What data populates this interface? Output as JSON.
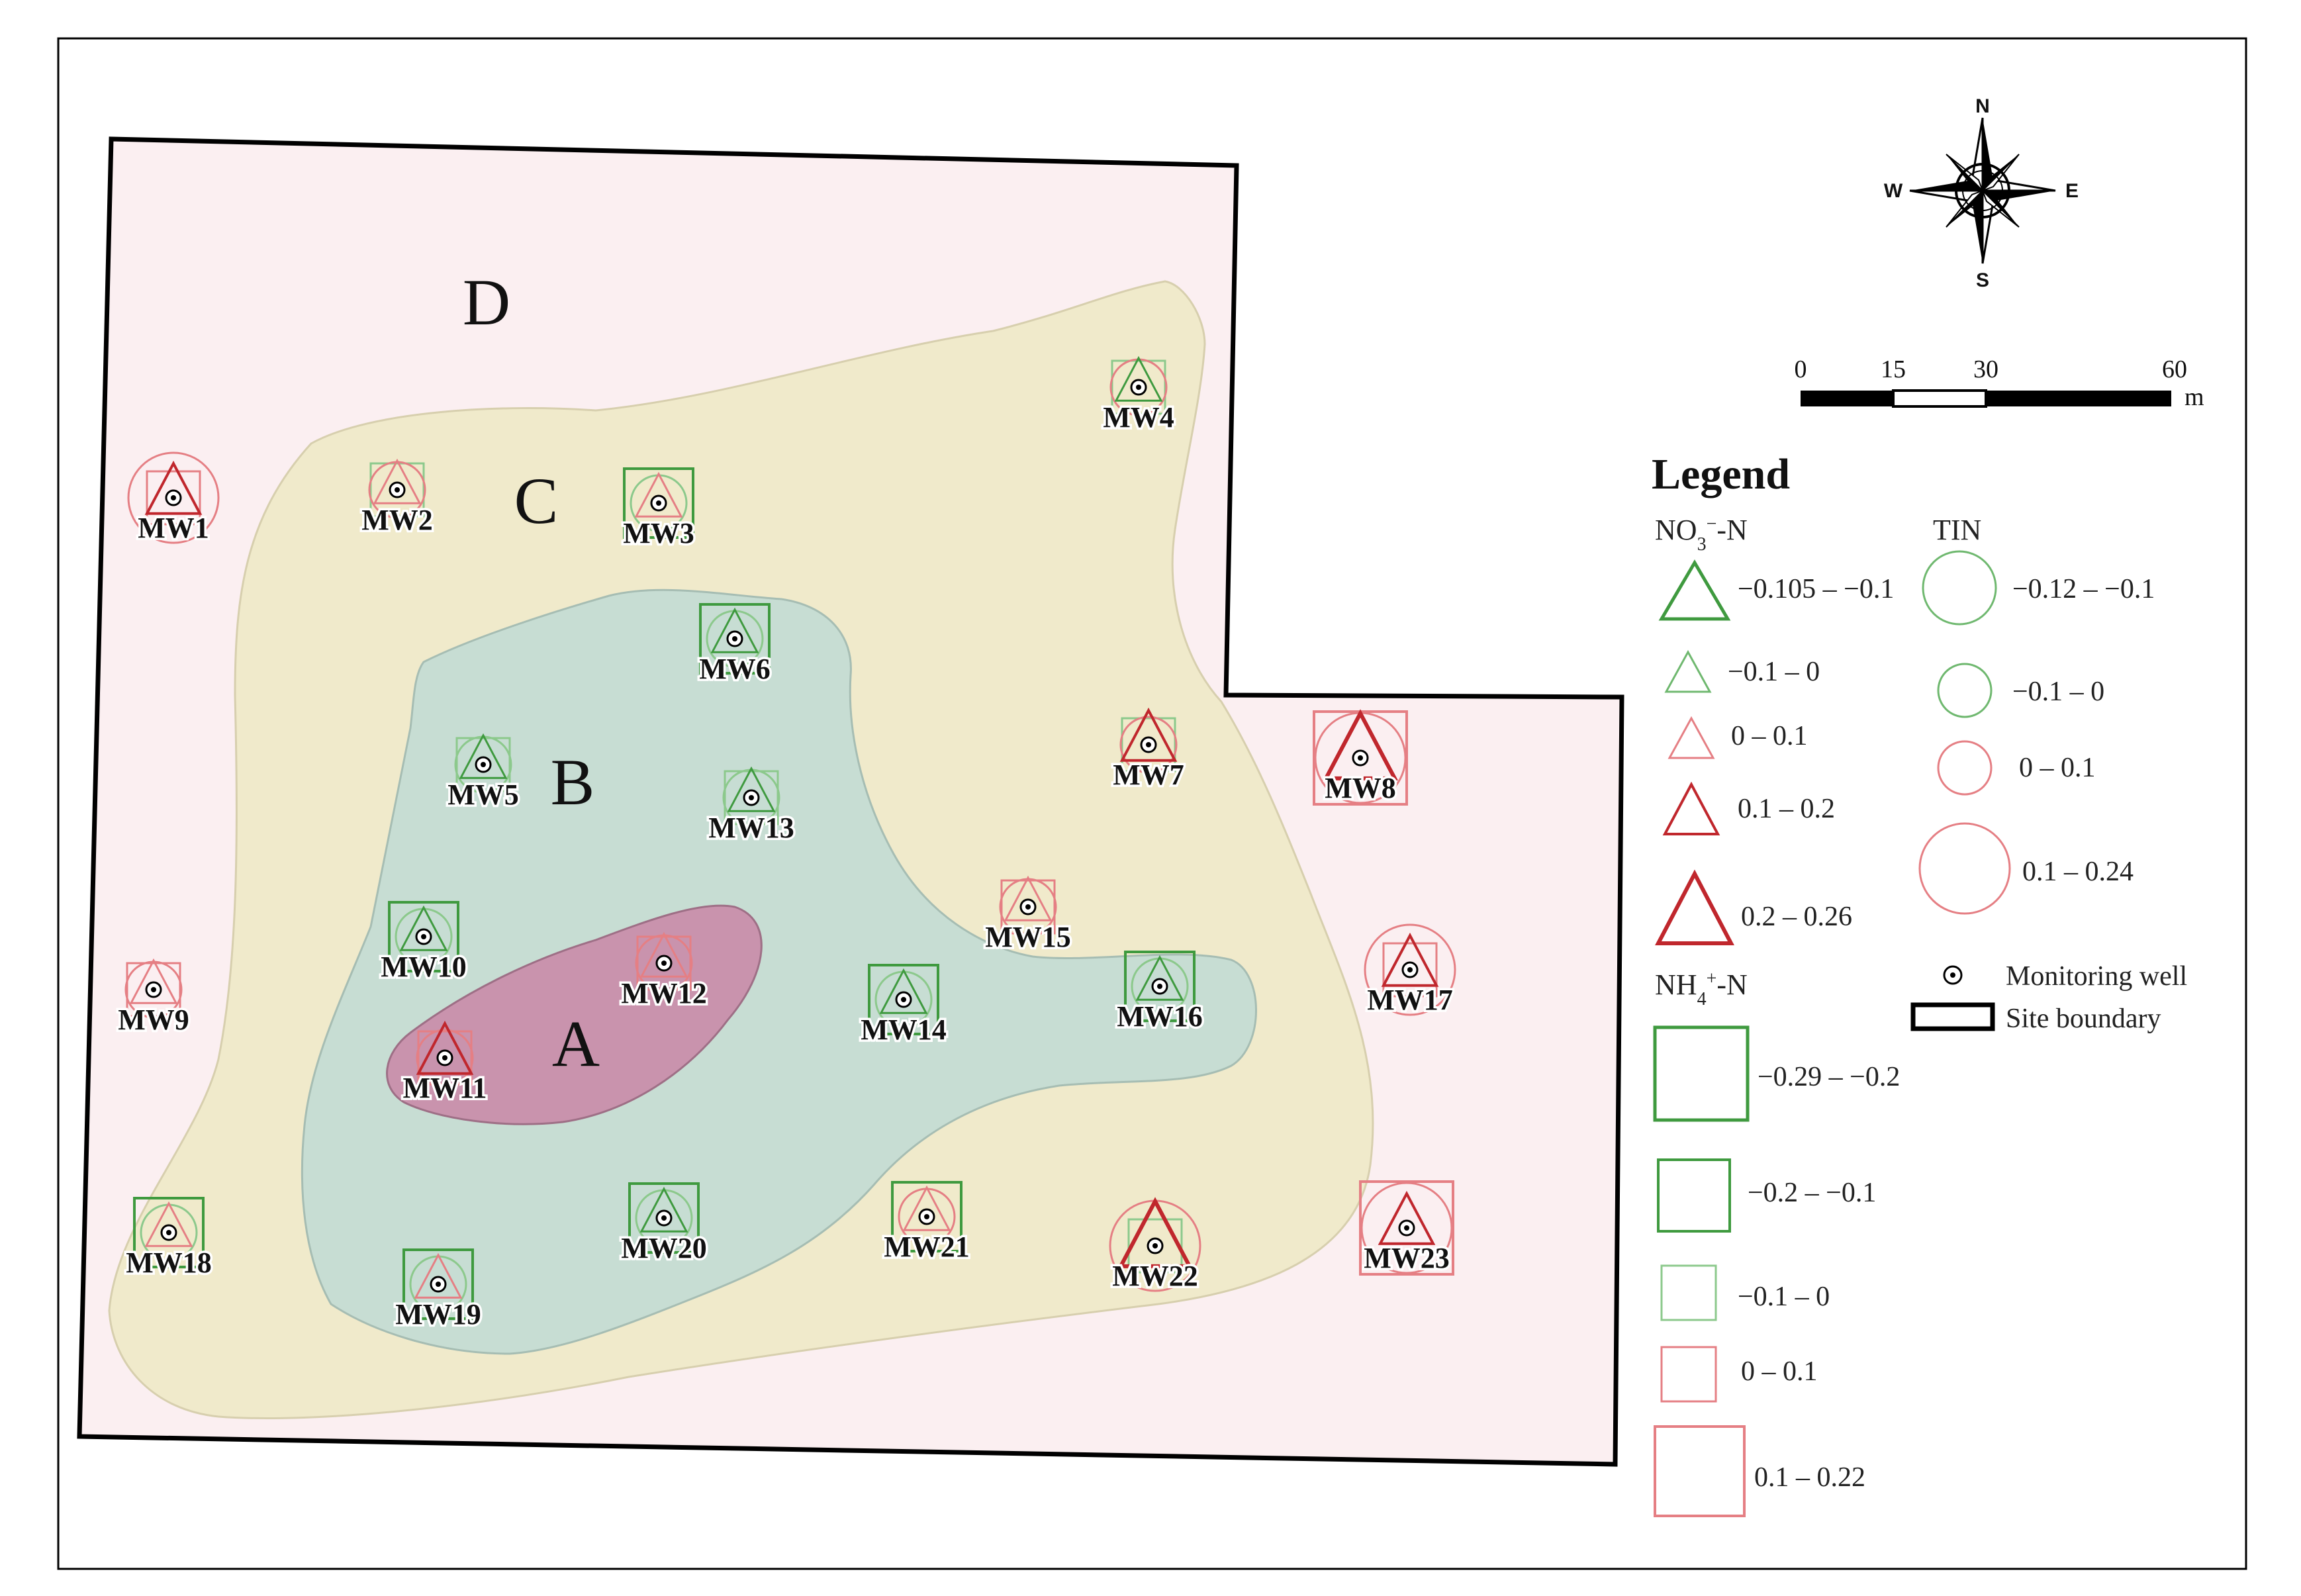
{
  "colors": {
    "zone_a": "#C993AD",
    "zone_b": "#C7DDD3",
    "zone_c": "#F0EACB",
    "zone_d": "#FBEFF1",
    "green": "#3F9A3F",
    "light_green": "#8CC98C",
    "red": "#C0272D",
    "light_red": "#E57F84",
    "boundary": "#000000"
  },
  "zones": [
    {
      "id": "A",
      "label": "A"
    },
    {
      "id": "B",
      "label": "B"
    },
    {
      "id": "C",
      "label": "C"
    },
    {
      "id": "D",
      "label": "D"
    }
  ],
  "compass": {
    "n": "N",
    "s": "S",
    "e": "E",
    "w": "W"
  },
  "scale_bar": {
    "ticks": [
      "0",
      "15",
      "30",
      "60"
    ],
    "unit": "m"
  },
  "legend": {
    "title": "Legend",
    "no3": {
      "heading_pre": "NO",
      "heading_sub": "3",
      "heading_sup": "−",
      "heading_post": "-N",
      "classes": [
        "−0.105 – −0.1",
        "−0.1 – 0",
        "0 – 0.1",
        "0.1 – 0.2",
        "0.2 – 0.26"
      ]
    },
    "tin": {
      "heading": "TIN",
      "classes": [
        "−0.12 – −0.1",
        "−0.1 – 0",
        "0 – 0.1",
        "0.1 – 0.24"
      ]
    },
    "nh4": {
      "heading_pre": "NH",
      "heading_sub": "4",
      "heading_sup": "+",
      "heading_post": "-N",
      "classes": [
        "−0.29 – −0.2",
        "−0.2 – −0.1",
        "−0.1 – 0",
        "0 – 0.1",
        "0.1 – 0.22"
      ]
    },
    "monitoring_well": "Monitoring well",
    "site_boundary": "Site boundary"
  },
  "wells": [
    {
      "id": "MW1",
      "label": "MW1",
      "no3_class": 3,
      "tin_class": 3,
      "nh4_class": 3
    },
    {
      "id": "MW2",
      "label": "MW2",
      "no3_class": 2,
      "tin_class": 2,
      "nh4_class": 2
    },
    {
      "id": "MW3",
      "label": "MW3",
      "no3_class": 2,
      "tin_class": 1,
      "nh4_class": 1
    },
    {
      "id": "MW4",
      "label": "MW4",
      "no3_class": 1,
      "tin_class": 2,
      "nh4_class": 2
    },
    {
      "id": "MW5",
      "label": "MW5",
      "no3_class": 1,
      "tin_class": 1,
      "nh4_class": 2
    },
    {
      "id": "MW6",
      "label": "MW6",
      "no3_class": 1,
      "tin_class": 1,
      "nh4_class": 1
    },
    {
      "id": "MW7",
      "label": "MW7",
      "no3_class": 3,
      "tin_class": 2,
      "nh4_class": 2
    },
    {
      "id": "MW8",
      "label": "MW8",
      "no3_class": 4,
      "tin_class": 3,
      "nh4_class": 4
    },
    {
      "id": "MW9",
      "label": "MW9",
      "no3_class": 2,
      "tin_class": 2,
      "nh4_class": 3
    },
    {
      "id": "MW10",
      "label": "MW10",
      "no3_class": 1,
      "tin_class": 1,
      "nh4_class": 1
    },
    {
      "id": "MW11",
      "label": "MW11",
      "no3_class": 3,
      "tin_class": 2,
      "nh4_class": 3
    },
    {
      "id": "MW12",
      "label": "MW12",
      "no3_class": 2,
      "tin_class": 2,
      "nh4_class": 3
    },
    {
      "id": "MW13",
      "label": "MW13",
      "no3_class": 1,
      "tin_class": 1,
      "nh4_class": 2
    },
    {
      "id": "MW14",
      "label": "MW14",
      "no3_class": 1,
      "tin_class": 1,
      "nh4_class": 1
    },
    {
      "id": "MW15",
      "label": "MW15",
      "no3_class": 2,
      "tin_class": 2,
      "nh4_class": 3
    },
    {
      "id": "MW16",
      "label": "MW16",
      "no3_class": 1,
      "tin_class": 1,
      "nh4_class": 1
    },
    {
      "id": "MW17",
      "label": "MW17",
      "no3_class": 3,
      "tin_class": 3,
      "nh4_class": 3
    },
    {
      "id": "MW18",
      "label": "MW18",
      "no3_class": 2,
      "tin_class": 1,
      "nh4_class": 1
    },
    {
      "id": "MW19",
      "label": "MW19",
      "no3_class": 2,
      "tin_class": 1,
      "nh4_class": 1
    },
    {
      "id": "MW20",
      "label": "MW20",
      "no3_class": 1,
      "tin_class": 1,
      "nh4_class": 1
    },
    {
      "id": "MW21",
      "label": "MW21",
      "no3_class": 2,
      "tin_class": 2,
      "nh4_class": 1
    },
    {
      "id": "MW22",
      "label": "MW22",
      "no3_class": 4,
      "tin_class": 3,
      "nh4_class": 2
    },
    {
      "id": "MW23",
      "label": "MW23",
      "no3_class": 3,
      "tin_class": 3,
      "nh4_class": 4
    }
  ]
}
